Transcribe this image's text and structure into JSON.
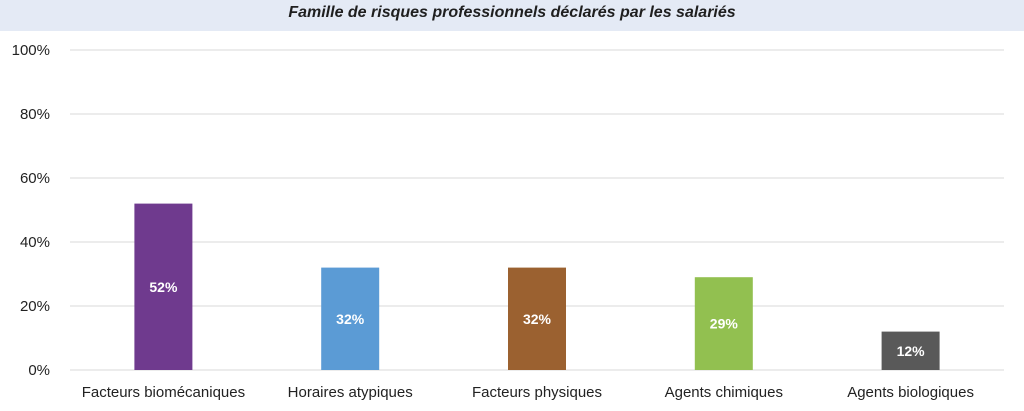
{
  "chart_data": {
    "type": "bar",
    "title": "Famille de risques professionnels déclarés par les salariés",
    "categories": [
      "Facteurs biomécaniques",
      "Horaires atypiques",
      "Facteurs physiques",
      "Agents chimiques",
      "Agents biologiques"
    ],
    "values": [
      52,
      32,
      32,
      29,
      12
    ],
    "data_labels": [
      "52%",
      "32%",
      "32%",
      "29%",
      "12%"
    ],
    "colors": [
      "#6f3a8e",
      "#5b9bd5",
      "#9b6130",
      "#92c050",
      "#595959"
    ],
    "yticks": [
      "0%",
      "20%",
      "40%",
      "60%",
      "80%",
      "100%"
    ],
    "ylim": [
      0,
      100
    ],
    "grid": true,
    "legend": "none"
  }
}
